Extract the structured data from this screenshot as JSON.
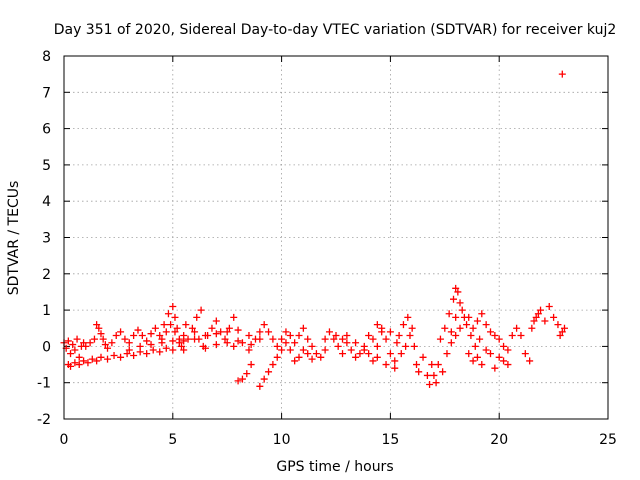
{
  "chart_data": {
    "type": "scatter",
    "title": "Day 351 of 2020, Sidereal Day-to-day VTEC variation (SDTVAR) for receiver kuj2",
    "xlabel": "GPS time / hours",
    "ylabel": "SDTVAR / TECUs",
    "xlim": [
      0,
      25
    ],
    "ylim": [
      -2,
      8
    ],
    "xticks": [
      "0",
      "5",
      "10",
      "15",
      "20",
      "25"
    ],
    "yticks": [
      "-2",
      "-1",
      "0",
      "1",
      "2",
      "3",
      "4",
      "5",
      "6",
      "7",
      "8"
    ],
    "grid": true,
    "marker": "plus",
    "series": [
      {
        "name": "SDTVAR",
        "color": "#ff0000",
        "points": [
          [
            0.0,
            0.1
          ],
          [
            0.1,
            -0.05
          ],
          [
            0.2,
            0.15
          ],
          [
            0.3,
            -0.2
          ],
          [
            0.4,
            0.05
          ],
          [
            0.5,
            -0.1
          ],
          [
            0.6,
            0.2
          ],
          [
            0.7,
            -0.3
          ],
          [
            0.8,
            0.0
          ],
          [
            0.9,
            0.1
          ],
          [
            0.2,
            -0.5
          ],
          [
            0.3,
            -0.55
          ],
          [
            0.5,
            -0.45
          ],
          [
            0.7,
            -0.5
          ],
          [
            0.9,
            -0.4
          ],
          [
            1.1,
            -0.45
          ],
          [
            1.3,
            -0.35
          ],
          [
            1.5,
            -0.4
          ],
          [
            1.7,
            -0.3
          ],
          [
            2.0,
            -0.35
          ],
          [
            2.3,
            -0.25
          ],
          [
            2.6,
            -0.3
          ],
          [
            2.9,
            -0.2
          ],
          [
            3.2,
            -0.25
          ],
          [
            3.5,
            -0.15
          ],
          [
            3.8,
            -0.2
          ],
          [
            4.1,
            -0.1
          ],
          [
            4.4,
            -0.15
          ],
          [
            4.7,
            -0.05
          ],
          [
            5.0,
            -0.1
          ],
          [
            1.0,
            0.0
          ],
          [
            1.2,
            0.1
          ],
          [
            1.4,
            0.2
          ],
          [
            1.5,
            0.6
          ],
          [
            1.6,
            0.5
          ],
          [
            1.7,
            0.35
          ],
          [
            1.8,
            0.2
          ],
          [
            1.9,
            0.05
          ],
          [
            2.0,
            -0.05
          ],
          [
            2.2,
            0.1
          ],
          [
            2.4,
            0.3
          ],
          [
            2.6,
            0.4
          ],
          [
            2.8,
            0.2
          ],
          [
            3.0,
            0.1
          ],
          [
            3.2,
            0.3
          ],
          [
            3.4,
            0.45
          ],
          [
            3.6,
            0.3
          ],
          [
            3.8,
            0.15
          ],
          [
            4.0,
            0.35
          ],
          [
            4.2,
            0.5
          ],
          [
            4.4,
            0.3
          ],
          [
            4.6,
            0.6
          ],
          [
            4.8,
            0.9
          ],
          [
            5.0,
            1.1
          ],
          [
            5.1,
            0.8
          ],
          [
            5.2,
            0.5
          ],
          [
            5.3,
            0.2
          ],
          [
            5.4,
            0.0
          ],
          [
            5.5,
            0.3
          ],
          [
            5.6,
            0.6
          ],
          [
            4.5,
            0.2
          ],
          [
            4.7,
            0.4
          ],
          [
            4.9,
            0.6
          ],
          [
            5.1,
            0.4
          ],
          [
            5.3,
            0.1
          ],
          [
            5.5,
            -0.1
          ],
          [
            5.7,
            0.2
          ],
          [
            5.9,
            0.5
          ],
          [
            6.1,
            0.8
          ],
          [
            6.3,
            1.0
          ],
          [
            6.0,
            0.4
          ],
          [
            6.2,
            0.2
          ],
          [
            6.4,
            0.0
          ],
          [
            6.6,
            0.3
          ],
          [
            6.8,
            0.5
          ],
          [
            7.0,
            0.7
          ],
          [
            7.2,
            0.4
          ],
          [
            7.4,
            0.2
          ],
          [
            7.6,
            0.5
          ],
          [
            7.8,
            0.8
          ],
          [
            5.5,
            0.15
          ],
          [
            6.0,
            0.2
          ],
          [
            6.5,
            0.3
          ],
          [
            7.0,
            0.35
          ],
          [
            7.5,
            0.4
          ],
          [
            8.0,
            0.45
          ],
          [
            8.5,
            0.3
          ],
          [
            9.0,
            0.2
          ],
          [
            8.2,
            0.1
          ],
          [
            7.8,
            0.0
          ],
          [
            3.0,
            -0.1
          ],
          [
            3.5,
            0.0
          ],
          [
            4.0,
            0.05
          ],
          [
            4.5,
            0.1
          ],
          [
            5.0,
            0.15
          ],
          [
            6.5,
            -0.05
          ],
          [
            7.0,
            0.05
          ],
          [
            7.5,
            0.1
          ],
          [
            8.0,
            0.15
          ],
          [
            8.5,
            -0.1
          ],
          [
            8.0,
            -0.95
          ],
          [
            8.2,
            -0.9
          ],
          [
            8.4,
            -0.75
          ],
          [
            8.6,
            -0.5
          ],
          [
            9.0,
            -1.1
          ],
          [
            9.2,
            -0.9
          ],
          [
            9.4,
            -0.7
          ],
          [
            9.6,
            -0.5
          ],
          [
            9.8,
            -0.3
          ],
          [
            10.0,
            -0.1
          ],
          [
            8.6,
            0.05
          ],
          [
            8.8,
            0.2
          ],
          [
            9.0,
            0.4
          ],
          [
            9.2,
            0.6
          ],
          [
            9.4,
            0.4
          ],
          [
            9.6,
            0.2
          ],
          [
            9.8,
            0.0
          ],
          [
            10.0,
            0.2
          ],
          [
            10.2,
            0.4
          ],
          [
            10.4,
            0.3
          ],
          [
            10.2,
            0.1
          ],
          [
            10.4,
            -0.1
          ],
          [
            10.6,
            0.1
          ],
          [
            10.8,
            0.3
          ],
          [
            11.0,
            0.5
          ],
          [
            11.2,
            0.2
          ],
          [
            11.4,
            0.0
          ],
          [
            11.6,
            -0.2
          ],
          [
            11.8,
            -0.3
          ],
          [
            12.0,
            -0.1
          ],
          [
            10.6,
            -0.4
          ],
          [
            10.8,
            -0.3
          ],
          [
            11.0,
            -0.1
          ],
          [
            11.2,
            -0.2
          ],
          [
            11.4,
            -0.35
          ],
          [
            12.0,
            0.2
          ],
          [
            12.2,
            0.4
          ],
          [
            12.4,
            0.2
          ],
          [
            12.6,
            0.0
          ],
          [
            12.8,
            -0.2
          ],
          [
            12.5,
            0.3
          ],
          [
            12.8,
            0.2
          ],
          [
            13.0,
            0.1
          ],
          [
            13.2,
            -0.1
          ],
          [
            13.4,
            -0.3
          ],
          [
            13.6,
            -0.2
          ],
          [
            13.8,
            0.0
          ],
          [
            14.0,
            -0.2
          ],
          [
            14.2,
            -0.4
          ],
          [
            14.4,
            -0.3
          ],
          [
            13.0,
            0.3
          ],
          [
            13.4,
            0.1
          ],
          [
            13.8,
            -0.1
          ],
          [
            14.0,
            0.3
          ],
          [
            14.2,
            0.2
          ],
          [
            14.4,
            0.0
          ],
          [
            14.6,
            0.4
          ],
          [
            14.8,
            0.2
          ],
          [
            15.0,
            -0.2
          ],
          [
            15.2,
            -0.4
          ],
          [
            14.4,
            0.6
          ],
          [
            14.6,
            0.5
          ],
          [
            14.8,
            -0.5
          ],
          [
            15.0,
            0.4
          ],
          [
            15.2,
            -0.6
          ],
          [
            15.4,
            0.3
          ],
          [
            15.6,
            0.6
          ],
          [
            15.8,
            0.8
          ],
          [
            16.0,
            0.5
          ],
          [
            16.2,
            -0.5
          ],
          [
            15.3,
            0.1
          ],
          [
            15.5,
            -0.2
          ],
          [
            15.7,
            0.0
          ],
          [
            15.9,
            0.3
          ],
          [
            16.1,
            0.0
          ],
          [
            16.3,
            -0.7
          ],
          [
            16.5,
            -0.3
          ],
          [
            16.7,
            -0.8
          ],
          [
            16.9,
            -0.5
          ],
          [
            17.1,
            -1.0
          ],
          [
            16.8,
            -1.05
          ],
          [
            17.0,
            -0.8
          ],
          [
            17.2,
            -0.5
          ],
          [
            17.4,
            -0.7
          ],
          [
            17.6,
            -0.2
          ],
          [
            17.8,
            0.4
          ],
          [
            18.0,
            0.8
          ],
          [
            18.0,
            1.6
          ],
          [
            18.2,
            1.2
          ],
          [
            18.4,
            0.8
          ],
          [
            17.3,
            0.2
          ],
          [
            17.5,
            0.5
          ],
          [
            17.7,
            0.9
          ],
          [
            17.9,
            1.3
          ],
          [
            18.1,
            1.5
          ],
          [
            18.3,
            1.0
          ],
          [
            18.5,
            0.6
          ],
          [
            18.7,
            0.3
          ],
          [
            18.9,
            0.0
          ],
          [
            19.1,
            0.2
          ],
          [
            17.8,
            0.1
          ],
          [
            18.0,
            0.3
          ],
          [
            18.2,
            0.5
          ],
          [
            18.6,
            0.8
          ],
          [
            18.8,
            0.5
          ],
          [
            19.0,
            0.7
          ],
          [
            19.2,
            0.9
          ],
          [
            19.4,
            0.6
          ],
          [
            19.6,
            0.4
          ],
          [
            19.8,
            0.3
          ],
          [
            18.6,
            -0.2
          ],
          [
            18.8,
            -0.4
          ],
          [
            19.0,
            -0.3
          ],
          [
            19.2,
            -0.5
          ],
          [
            19.4,
            -0.1
          ],
          [
            19.6,
            -0.2
          ],
          [
            19.8,
            -0.6
          ],
          [
            20.0,
            -0.3
          ],
          [
            20.2,
            -0.4
          ],
          [
            20.4,
            -0.5
          ],
          [
            20.0,
            0.2
          ],
          [
            20.2,
            0.0
          ],
          [
            20.4,
            -0.1
          ],
          [
            20.6,
            0.3
          ],
          [
            20.8,
            0.5
          ],
          [
            21.0,
            0.3
          ],
          [
            21.2,
            -0.2
          ],
          [
            21.4,
            -0.4
          ],
          [
            21.6,
            0.7
          ],
          [
            21.8,
            0.9
          ],
          [
            21.5,
            0.5
          ],
          [
            21.7,
            0.8
          ],
          [
            21.9,
            1.0
          ],
          [
            22.1,
            0.7
          ],
          [
            22.3,
            1.1
          ],
          [
            22.5,
            0.8
          ],
          [
            22.7,
            0.6
          ],
          [
            22.9,
            0.4
          ],
          [
            23.0,
            0.5
          ],
          [
            22.8,
            0.3
          ],
          [
            22.9,
            7.5
          ]
        ]
      }
    ]
  }
}
